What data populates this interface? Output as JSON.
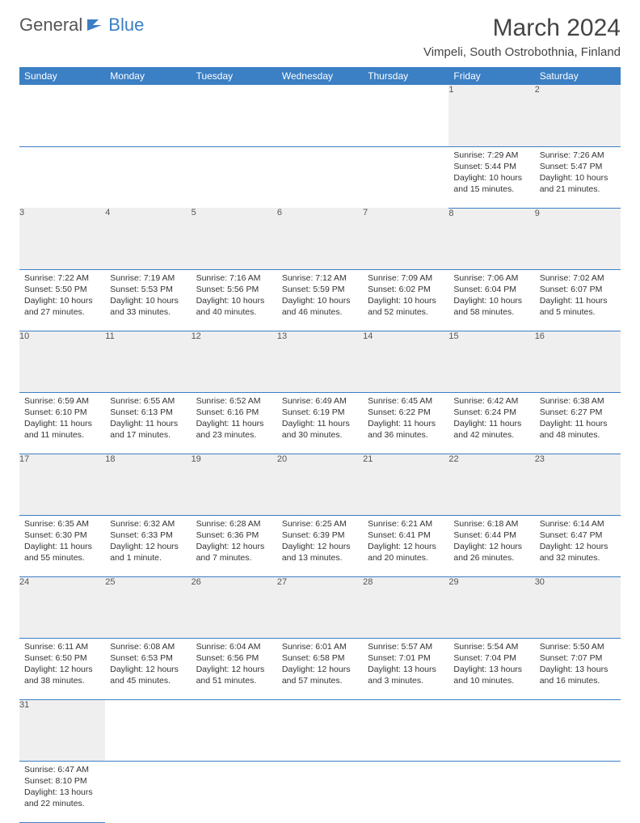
{
  "logo": {
    "text1": "General",
    "text2": "Blue"
  },
  "title": "March 2024",
  "location": "Vimpeli, South Ostrobothnia, Finland",
  "colors": {
    "header_bg": "#3b7fc4",
    "header_fg": "#ffffff",
    "daynum_bg": "#efefef",
    "row_border": "#3b7fc4"
  },
  "weekdays": [
    "Sunday",
    "Monday",
    "Tuesday",
    "Wednesday",
    "Thursday",
    "Friday",
    "Saturday"
  ],
  "weeks": [
    {
      "nums": [
        "",
        "",
        "",
        "",
        "",
        "1",
        "2"
      ],
      "cells": [
        null,
        null,
        null,
        null,
        null,
        {
          "sunrise": "Sunrise: 7:29 AM",
          "sunset": "Sunset: 5:44 PM",
          "daylight": "Daylight: 10 hours and 15 minutes."
        },
        {
          "sunrise": "Sunrise: 7:26 AM",
          "sunset": "Sunset: 5:47 PM",
          "daylight": "Daylight: 10 hours and 21 minutes."
        }
      ]
    },
    {
      "nums": [
        "3",
        "4",
        "5",
        "6",
        "7",
        "8",
        "9"
      ],
      "cells": [
        {
          "sunrise": "Sunrise: 7:22 AM",
          "sunset": "Sunset: 5:50 PM",
          "daylight": "Daylight: 10 hours and 27 minutes."
        },
        {
          "sunrise": "Sunrise: 7:19 AM",
          "sunset": "Sunset: 5:53 PM",
          "daylight": "Daylight: 10 hours and 33 minutes."
        },
        {
          "sunrise": "Sunrise: 7:16 AM",
          "sunset": "Sunset: 5:56 PM",
          "daylight": "Daylight: 10 hours and 40 minutes."
        },
        {
          "sunrise": "Sunrise: 7:12 AM",
          "sunset": "Sunset: 5:59 PM",
          "daylight": "Daylight: 10 hours and 46 minutes."
        },
        {
          "sunrise": "Sunrise: 7:09 AM",
          "sunset": "Sunset: 6:02 PM",
          "daylight": "Daylight: 10 hours and 52 minutes."
        },
        {
          "sunrise": "Sunrise: 7:06 AM",
          "sunset": "Sunset: 6:04 PM",
          "daylight": "Daylight: 10 hours and 58 minutes."
        },
        {
          "sunrise": "Sunrise: 7:02 AM",
          "sunset": "Sunset: 6:07 PM",
          "daylight": "Daylight: 11 hours and 5 minutes."
        }
      ]
    },
    {
      "nums": [
        "10",
        "11",
        "12",
        "13",
        "14",
        "15",
        "16"
      ],
      "cells": [
        {
          "sunrise": "Sunrise: 6:59 AM",
          "sunset": "Sunset: 6:10 PM",
          "daylight": "Daylight: 11 hours and 11 minutes."
        },
        {
          "sunrise": "Sunrise: 6:55 AM",
          "sunset": "Sunset: 6:13 PM",
          "daylight": "Daylight: 11 hours and 17 minutes."
        },
        {
          "sunrise": "Sunrise: 6:52 AM",
          "sunset": "Sunset: 6:16 PM",
          "daylight": "Daylight: 11 hours and 23 minutes."
        },
        {
          "sunrise": "Sunrise: 6:49 AM",
          "sunset": "Sunset: 6:19 PM",
          "daylight": "Daylight: 11 hours and 30 minutes."
        },
        {
          "sunrise": "Sunrise: 6:45 AM",
          "sunset": "Sunset: 6:22 PM",
          "daylight": "Daylight: 11 hours and 36 minutes."
        },
        {
          "sunrise": "Sunrise: 6:42 AM",
          "sunset": "Sunset: 6:24 PM",
          "daylight": "Daylight: 11 hours and 42 minutes."
        },
        {
          "sunrise": "Sunrise: 6:38 AM",
          "sunset": "Sunset: 6:27 PM",
          "daylight": "Daylight: 11 hours and 48 minutes."
        }
      ]
    },
    {
      "nums": [
        "17",
        "18",
        "19",
        "20",
        "21",
        "22",
        "23"
      ],
      "cells": [
        {
          "sunrise": "Sunrise: 6:35 AM",
          "sunset": "Sunset: 6:30 PM",
          "daylight": "Daylight: 11 hours and 55 minutes."
        },
        {
          "sunrise": "Sunrise: 6:32 AM",
          "sunset": "Sunset: 6:33 PM",
          "daylight": "Daylight: 12 hours and 1 minute."
        },
        {
          "sunrise": "Sunrise: 6:28 AM",
          "sunset": "Sunset: 6:36 PM",
          "daylight": "Daylight: 12 hours and 7 minutes."
        },
        {
          "sunrise": "Sunrise: 6:25 AM",
          "sunset": "Sunset: 6:39 PM",
          "daylight": "Daylight: 12 hours and 13 minutes."
        },
        {
          "sunrise": "Sunrise: 6:21 AM",
          "sunset": "Sunset: 6:41 PM",
          "daylight": "Daylight: 12 hours and 20 minutes."
        },
        {
          "sunrise": "Sunrise: 6:18 AM",
          "sunset": "Sunset: 6:44 PM",
          "daylight": "Daylight: 12 hours and 26 minutes."
        },
        {
          "sunrise": "Sunrise: 6:14 AM",
          "sunset": "Sunset: 6:47 PM",
          "daylight": "Daylight: 12 hours and 32 minutes."
        }
      ]
    },
    {
      "nums": [
        "24",
        "25",
        "26",
        "27",
        "28",
        "29",
        "30"
      ],
      "cells": [
        {
          "sunrise": "Sunrise: 6:11 AM",
          "sunset": "Sunset: 6:50 PM",
          "daylight": "Daylight: 12 hours and 38 minutes."
        },
        {
          "sunrise": "Sunrise: 6:08 AM",
          "sunset": "Sunset: 6:53 PM",
          "daylight": "Daylight: 12 hours and 45 minutes."
        },
        {
          "sunrise": "Sunrise: 6:04 AM",
          "sunset": "Sunset: 6:56 PM",
          "daylight": "Daylight: 12 hours and 51 minutes."
        },
        {
          "sunrise": "Sunrise: 6:01 AM",
          "sunset": "Sunset: 6:58 PM",
          "daylight": "Daylight: 12 hours and 57 minutes."
        },
        {
          "sunrise": "Sunrise: 5:57 AM",
          "sunset": "Sunset: 7:01 PM",
          "daylight": "Daylight: 13 hours and 3 minutes."
        },
        {
          "sunrise": "Sunrise: 5:54 AM",
          "sunset": "Sunset: 7:04 PM",
          "daylight": "Daylight: 13 hours and 10 minutes."
        },
        {
          "sunrise": "Sunrise: 5:50 AM",
          "sunset": "Sunset: 7:07 PM",
          "daylight": "Daylight: 13 hours and 16 minutes."
        }
      ]
    },
    {
      "nums": [
        "31",
        "",
        "",
        "",
        "",
        "",
        ""
      ],
      "cells": [
        {
          "sunrise": "Sunrise: 6:47 AM",
          "sunset": "Sunset: 8:10 PM",
          "daylight": "Daylight: 13 hours and 22 minutes."
        },
        null,
        null,
        null,
        null,
        null,
        null
      ]
    }
  ]
}
